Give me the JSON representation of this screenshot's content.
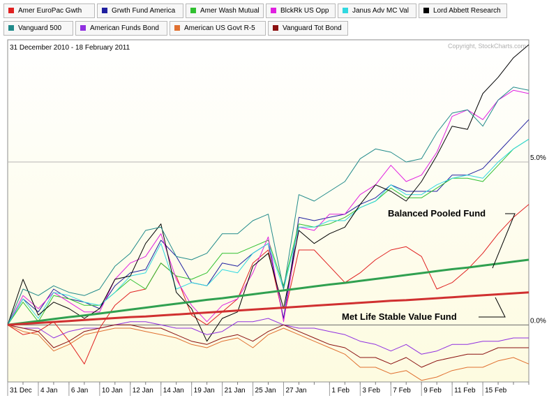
{
  "date_range": "31 December 2010 - 18 February 2011",
  "copyright": "Copyright, StockCharts.com",
  "chart_data": {
    "type": "line",
    "title": "31 December 2010 - 18 February 2011",
    "x": [
      "31 Dec",
      "3 Jan",
      "4 Jan",
      "5 Jan",
      "6 Jan",
      "7 Jan",
      "10 Jan",
      "11 Jan",
      "12 Jan",
      "13 Jan",
      "14 Jan",
      "18 Jan",
      "19 Jan",
      "20 Jan",
      "21 Jan",
      "24 Jan",
      "25 Jan",
      "26 Jan",
      "27 Jan",
      "28 Jan",
      "31 Jan",
      "1 Feb",
      "2 Feb",
      "3 Feb",
      "4 Feb",
      "7 Feb",
      "8 Feb",
      "9 Feb",
      "10 Feb",
      "11 Feb",
      "14 Feb",
      "15 Feb",
      "16 Feb",
      "17 Feb",
      "18 Feb"
    ],
    "x_tick_labels": [
      "31 Dec",
      "4 Jan",
      "6 Jan",
      "10 Jan",
      "12 Jan",
      "14 Jan",
      "19 Jan",
      "21 Jan",
      "25 Jan",
      "27 Jan",
      "1 Feb",
      "3 Feb",
      "7 Feb",
      "9 Feb",
      "11 Feb",
      "15 Feb"
    ],
    "ylim": [
      -1.75,
      8.75
    ],
    "y_ticks": [
      {
        "value": 0,
        "label": "0.0%"
      },
      {
        "value": 5,
        "label": "5.0%"
      }
    ],
    "series": [
      {
        "name": "Amer EuroPac Gwth",
        "color": "#e02020",
        "width": 1,
        "values": [
          0,
          -0.3,
          -0.2,
          0.1,
          -0.5,
          -1.2,
          -0.1,
          0.6,
          1,
          1.1,
          1.9,
          1.5,
          0.3,
          0,
          0.4,
          0.8,
          1.9,
          2.3,
          0.2,
          2.3,
          2.3,
          1.8,
          1.3,
          1.6,
          2,
          2.3,
          2.4,
          2.1,
          1.1,
          1.3,
          1.7,
          2.2,
          2.8,
          3.3,
          3.7
        ]
      },
      {
        "name": "Grwth Fund America",
        "color": "#2020a0",
        "width": 1,
        "values": [
          0,
          0.8,
          0.4,
          1.1,
          0.8,
          0.7,
          0.5,
          1.2,
          1.6,
          1.7,
          2.6,
          2.1,
          1.3,
          1.2,
          1.9,
          1.8,
          2.2,
          2.5,
          0.2,
          3.3,
          3.2,
          3.3,
          3.4,
          3.7,
          3.9,
          4.3,
          4.1,
          4.1,
          4.1,
          4.6,
          4.6,
          4.8,
          5.3,
          5.8,
          6.3
        ]
      },
      {
        "name": "Amer Wash Mutual",
        "color": "#30c030",
        "width": 1,
        "values": [
          0,
          0.7,
          0.1,
          0.9,
          0.8,
          0.6,
          0.6,
          1,
          1.4,
          1.1,
          1.9,
          1.5,
          1.4,
          1.6,
          2.2,
          2.2,
          2.4,
          2.6,
          1.2,
          3.1,
          3,
          3.1,
          3.3,
          3.6,
          3.8,
          4.2,
          3.9,
          3.9,
          4.2,
          4.5,
          4.5,
          4.4,
          4.9,
          5.4,
          5.7
        ]
      },
      {
        "name": "BlckRk US Opp",
        "color": "#e020e0",
        "width": 1,
        "values": [
          0,
          0.9,
          0.5,
          1,
          0.7,
          0.4,
          0.4,
          1.4,
          1.9,
          2.1,
          2.8,
          1.4,
          0.6,
          0.1,
          0.6,
          0.8,
          1.6,
          2.7,
          0.1,
          3,
          2.9,
          3.4,
          3.4,
          4,
          4.3,
          4.9,
          4.4,
          4.6,
          5.3,
          6.4,
          6.6,
          6.3,
          6.9,
          7.2,
          7.1
        ]
      },
      {
        "name": "Janus Adv MC Val",
        "color": "#30d8e0",
        "width": 1,
        "values": [
          0,
          0.8,
          0.2,
          1,
          0.9,
          0.7,
          0.6,
          1,
          1.5,
          1.6,
          2.5,
          1.1,
          1.3,
          1.2,
          1.7,
          1.6,
          2.2,
          2.5,
          1.1,
          3,
          3,
          3.2,
          3.2,
          3.6,
          3.8,
          4.3,
          4,
          4,
          4.3,
          4.5,
          4.6,
          4.5,
          5,
          5.4,
          5.7
        ]
      },
      {
        "name": "Lord Abbett Research",
        "color": "#000000",
        "width": 1,
        "values": [
          0,
          1.4,
          0.3,
          0.7,
          0.5,
          0.2,
          0.5,
          1.4,
          1.5,
          2.5,
          3.1,
          1,
          0.5,
          -0.5,
          0.2,
          0.4,
          1.8,
          2.2,
          0.5,
          2.9,
          2.5,
          2.8,
          3,
          3.7,
          4.3,
          4.1,
          3.8,
          4.4,
          5.2,
          6.1,
          6,
          7.1,
          7.6,
          8.2,
          8.6
        ]
      },
      {
        "name": "Vanguard 500",
        "color": "#208a8a",
        "width": 1,
        "values": [
          0,
          1.1,
          0.9,
          1.2,
          1,
          0.9,
          1.1,
          1.8,
          2.2,
          2.9,
          3,
          2.1,
          2,
          2.2,
          2.8,
          2.8,
          3.2,
          3.4,
          1.1,
          4,
          3.8,
          4.1,
          4.4,
          5.1,
          5.4,
          5.3,
          5,
          5.1,
          5.9,
          6.5,
          6.6,
          6.1,
          6.9,
          7.3,
          7.2
        ]
      },
      {
        "name": "American Funds Bond",
        "color": "#9030e0",
        "width": 1,
        "values": [
          0,
          -0.1,
          -0.1,
          -0.4,
          -0.2,
          -0.1,
          -0.1,
          0,
          0.1,
          0.1,
          0,
          -0.1,
          -0.1,
          -0.3,
          -0.2,
          0.1,
          0.1,
          0.2,
          0,
          -0.1,
          -0.1,
          -0.2,
          -0.3,
          -0.5,
          -0.6,
          -0.8,
          -0.6,
          -0.9,
          -0.8,
          -0.6,
          -0.6,
          -0.5,
          -0.5,
          -0.4,
          -0.4
        ]
      },
      {
        "name": "American US Govt R-5",
        "color": "#e07030",
        "width": 1,
        "values": [
          0,
          -0.2,
          -0.3,
          -0.8,
          -0.6,
          -0.3,
          -0.2,
          -0.1,
          -0.1,
          -0.2,
          -0.3,
          -0.4,
          -0.6,
          -0.7,
          -0.5,
          -0.4,
          -0.7,
          -0.3,
          -0.1,
          -0.3,
          -0.5,
          -0.7,
          -0.9,
          -1.3,
          -1.3,
          -1.5,
          -1.4,
          -1.7,
          -1.6,
          -1.4,
          -1.3,
          -1.3,
          -1.1,
          -1,
          -1.2
        ]
      },
      {
        "name": "Vanguard Tot Bond",
        "color": "#8a1010",
        "width": 1,
        "values": [
          0,
          -0.1,
          -0.2,
          -0.7,
          -0.5,
          -0.2,
          -0.1,
          0,
          0,
          -0.1,
          -0.1,
          -0.3,
          -0.5,
          -0.6,
          -0.4,
          -0.3,
          -0.5,
          -0.2,
          0,
          -0.2,
          -0.4,
          -0.6,
          -0.7,
          -1,
          -1,
          -1.2,
          -1,
          -1.3,
          -1.1,
          -1,
          -0.9,
          -0.9,
          -0.7,
          -0.7,
          -0.7
        ]
      },
      {
        "name": "Balanced Pooled Fund",
        "color": "#30a050",
        "width": 3,
        "values": [
          0,
          0.06,
          0.12,
          0.18,
          0.24,
          0.29,
          0.35,
          0.41,
          0.47,
          0.53,
          0.59,
          0.65,
          0.71,
          0.77,
          0.82,
          0.88,
          0.94,
          1,
          1.06,
          1.12,
          1.18,
          1.24,
          1.29,
          1.35,
          1.41,
          1.47,
          1.53,
          1.59,
          1.65,
          1.71,
          1.76,
          1.82,
          1.88,
          1.94,
          2
        ]
      },
      {
        "name": "Met Life Stable Value Fund",
        "color": "#d03030",
        "width": 3,
        "values": [
          0,
          0.03,
          0.06,
          0.09,
          0.12,
          0.15,
          0.18,
          0.21,
          0.24,
          0.26,
          0.29,
          0.32,
          0.35,
          0.38,
          0.41,
          0.44,
          0.47,
          0.5,
          0.53,
          0.56,
          0.59,
          0.62,
          0.65,
          0.68,
          0.71,
          0.74,
          0.76,
          0.79,
          0.82,
          0.85,
          0.88,
          0.91,
          0.94,
          0.97,
          1
        ]
      }
    ],
    "annotations": [
      "Balanced Pooled Fund",
      "Met Life Stable Value Fund"
    ]
  },
  "legend": [
    {
      "label": "Amer EuroPac Gwth",
      "color": "#e02020"
    },
    {
      "label": "Grwth Fund America",
      "color": "#2020a0"
    },
    {
      "label": "Amer Wash Mutual",
      "color": "#30c030"
    },
    {
      "label": "BlckRk US Opp",
      "color": "#e020e0"
    },
    {
      "label": "Janus Adv MC Val",
      "color": "#30d8e0"
    },
    {
      "label": "Lord Abbett Research",
      "color": "#000000"
    },
    {
      "label": "Vanguard 500",
      "color": "#208a8a"
    },
    {
      "label": "American Funds Bond",
      "color": "#9030e0"
    },
    {
      "label": "American US Govt R-5",
      "color": "#e07030"
    },
    {
      "label": "Vanguard Tot Bond",
      "color": "#8a1010"
    }
  ]
}
